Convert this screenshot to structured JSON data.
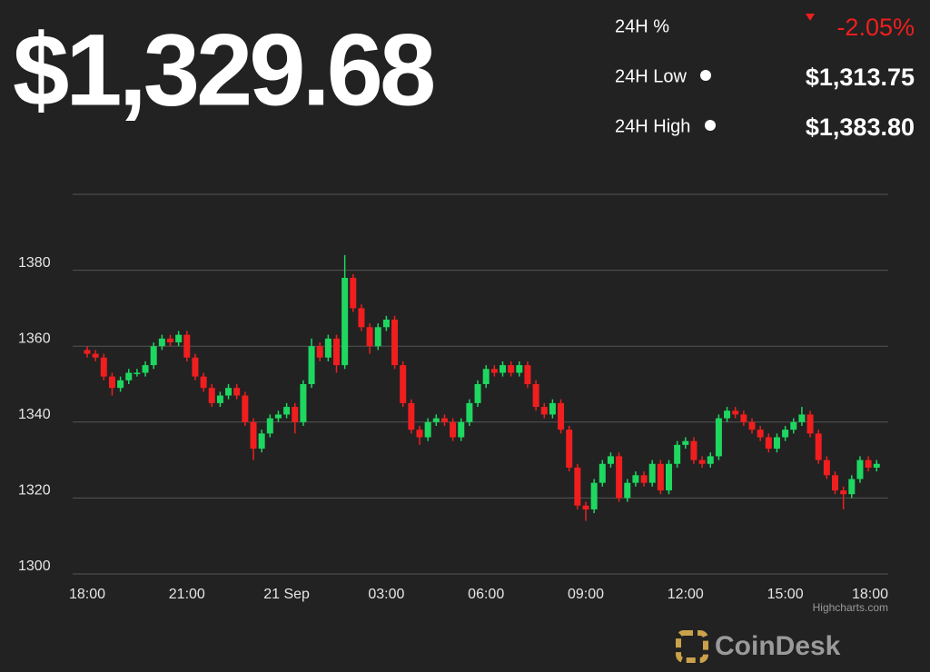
{
  "header": {
    "price": "$1,329.68",
    "stats": [
      {
        "label": "24H %",
        "value": "-2.05%"
      },
      {
        "label": "24H Low",
        "value": "$1,313.75"
      },
      {
        "label": "24H High",
        "value": "$1,383.80"
      }
    ]
  },
  "chart_data": {
    "type": "candlestick",
    "x": [
      "18:00",
      "18:15",
      "18:30",
      "18:45",
      "19:00",
      "19:15",
      "19:30",
      "19:45",
      "20:00",
      "20:15",
      "20:30",
      "20:45",
      "21:00",
      "21:15",
      "21:30",
      "21:45",
      "22:00",
      "22:15",
      "22:30",
      "22:45",
      "23:00",
      "23:15",
      "23:30",
      "23:45",
      "00:00",
      "00:15",
      "00:30",
      "00:45",
      "01:00",
      "01:15",
      "01:30",
      "01:45",
      "02:00",
      "02:15",
      "02:30",
      "02:45",
      "03:00",
      "03:15",
      "03:30",
      "03:45",
      "04:00",
      "04:15",
      "04:30",
      "04:45",
      "05:00",
      "05:15",
      "05:30",
      "05:45",
      "06:00",
      "06:15",
      "06:30",
      "06:45",
      "07:00",
      "07:15",
      "07:30",
      "07:45",
      "08:00",
      "08:15",
      "08:30",
      "08:45",
      "09:00",
      "09:15",
      "09:30",
      "09:45",
      "10:00",
      "10:15",
      "10:30",
      "10:45",
      "11:00",
      "11:15",
      "11:30",
      "11:45",
      "12:00",
      "12:15",
      "12:30",
      "12:45",
      "13:00",
      "13:15",
      "13:30",
      "13:45",
      "14:00",
      "14:15",
      "14:30",
      "14:45",
      "15:00",
      "15:15",
      "15:30",
      "15:45",
      "16:00",
      "16:15",
      "16:30",
      "16:45",
      "17:00",
      "17:15",
      "17:30",
      "17:45"
    ],
    "open": [
      1359,
      1358,
      1357,
      1352,
      1349,
      1351,
      1353,
      1353,
      1355,
      1360,
      1362,
      1361,
      1363,
      1357,
      1352,
      1349,
      1345,
      1347,
      1349,
      1347,
      1340,
      1333,
      1337,
      1341,
      1342,
      1344,
      1340,
      1350,
      1360,
      1357,
      1362,
      1355,
      1378,
      1370,
      1365,
      1360,
      1365,
      1367,
      1355,
      1345,
      1338,
      1336,
      1340,
      1341,
      1340,
      1336,
      1340,
      1345,
      1350,
      1354,
      1353,
      1355,
      1353,
      1355,
      1350,
      1344,
      1342,
      1345,
      1338,
      1328,
      1318,
      1317,
      1324,
      1329,
      1331,
      1320,
      1324,
      1326,
      1324,
      1329,
      1322,
      1329,
      1334,
      1335,
      1330,
      1329,
      1331,
      1341,
      1343,
      1342,
      1340,
      1338,
      1336,
      1333,
      1336,
      1338,
      1340,
      1342,
      1337,
      1330,
      1326,
      1322,
      1321,
      1325,
      1330,
      1328
    ],
    "high": [
      1360,
      1359,
      1358,
      1353,
      1352,
      1354,
      1354,
      1356,
      1361,
      1363,
      1363,
      1364,
      1364,
      1358,
      1353,
      1350,
      1348,
      1350,
      1350,
      1348,
      1341,
      1338,
      1342,
      1343,
      1345,
      1345,
      1351,
      1362,
      1361,
      1363,
      1363,
      1384,
      1379,
      1371,
      1366,
      1366,
      1368,
      1368,
      1356,
      1346,
      1339,
      1341,
      1342,
      1342,
      1341,
      1341,
      1346,
      1351,
      1355,
      1355,
      1356,
      1356,
      1356,
      1356,
      1351,
      1345,
      1346,
      1346,
      1339,
      1329,
      1319,
      1325,
      1330,
      1332,
      1332,
      1325,
      1327,
      1327,
      1330,
      1330,
      1330,
      1335,
      1336,
      1336,
      1331,
      1332,
      1342,
      1344,
      1344,
      1343,
      1341,
      1339,
      1337,
      1337,
      1339,
      1341,
      1344,
      1343,
      1338,
      1331,
      1327,
      1323,
      1326,
      1331,
      1331,
      1330
    ],
    "low": [
      1357,
      1356,
      1351,
      1347,
      1348,
      1350,
      1352,
      1352,
      1354,
      1359,
      1360,
      1360,
      1356,
      1351,
      1348,
      1344,
      1344,
      1346,
      1346,
      1339,
      1330,
      1332,
      1336,
      1340,
      1341,
      1337,
      1339,
      1349,
      1356,
      1356,
      1353,
      1354,
      1369,
      1364,
      1358,
      1359,
      1364,
      1354,
      1344,
      1337,
      1334,
      1335,
      1339,
      1339,
      1335,
      1335,
      1339,
      1344,
      1349,
      1352,
      1352,
      1352,
      1352,
      1349,
      1343,
      1341,
      1341,
      1337,
      1327,
      1317,
      1314,
      1316,
      1323,
      1328,
      1319,
      1319,
      1323,
      1323,
      1323,
      1321,
      1321,
      1328,
      1333,
      1329,
      1328,
      1328,
      1330,
      1340,
      1341,
      1339,
      1337,
      1335,
      1332,
      1332,
      1335,
      1337,
      1339,
      1336,
      1329,
      1325,
      1321,
      1317,
      1320,
      1324,
      1327,
      1327
    ],
    "close": [
      1358,
      1357,
      1352,
      1349,
      1351,
      1353,
      1353,
      1355,
      1360,
      1362,
      1361,
      1363,
      1357,
      1352,
      1349,
      1345,
      1347,
      1349,
      1347,
      1340,
      1333,
      1337,
      1341,
      1342,
      1344,
      1340,
      1350,
      1360,
      1357,
      1362,
      1355,
      1378,
      1370,
      1365,
      1360,
      1365,
      1367,
      1355,
      1345,
      1338,
      1336,
      1340,
      1341,
      1340,
      1336,
      1340,
      1345,
      1350,
      1354,
      1353,
      1355,
      1353,
      1355,
      1350,
      1344,
      1342,
      1345,
      1338,
      1328,
      1318,
      1317,
      1324,
      1329,
      1331,
      1320,
      1324,
      1326,
      1324,
      1329,
      1322,
      1329,
      1334,
      1335,
      1330,
      1329,
      1331,
      1341,
      1343,
      1342,
      1340,
      1338,
      1336,
      1333,
      1336,
      1338,
      1340,
      1342,
      1337,
      1330,
      1326,
      1322,
      1321,
      1325,
      1330,
      1328,
      1329
    ],
    "up_color": "#1ed760",
    "down_color": "#f01e1e",
    "ylim": [
      1300,
      1400
    ],
    "yticks": [
      1300,
      1320,
      1340,
      1360,
      1380
    ],
    "grid": true,
    "xticks": [
      "18:00",
      "21:00",
      {
        "value": "00:00",
        "label": "21 Sep"
      },
      "03:00",
      "06:00",
      "09:00",
      "12:00",
      "15:00",
      "18:00"
    ],
    "credit": "Highcharts.com"
  },
  "brand": "CoinDesk"
}
